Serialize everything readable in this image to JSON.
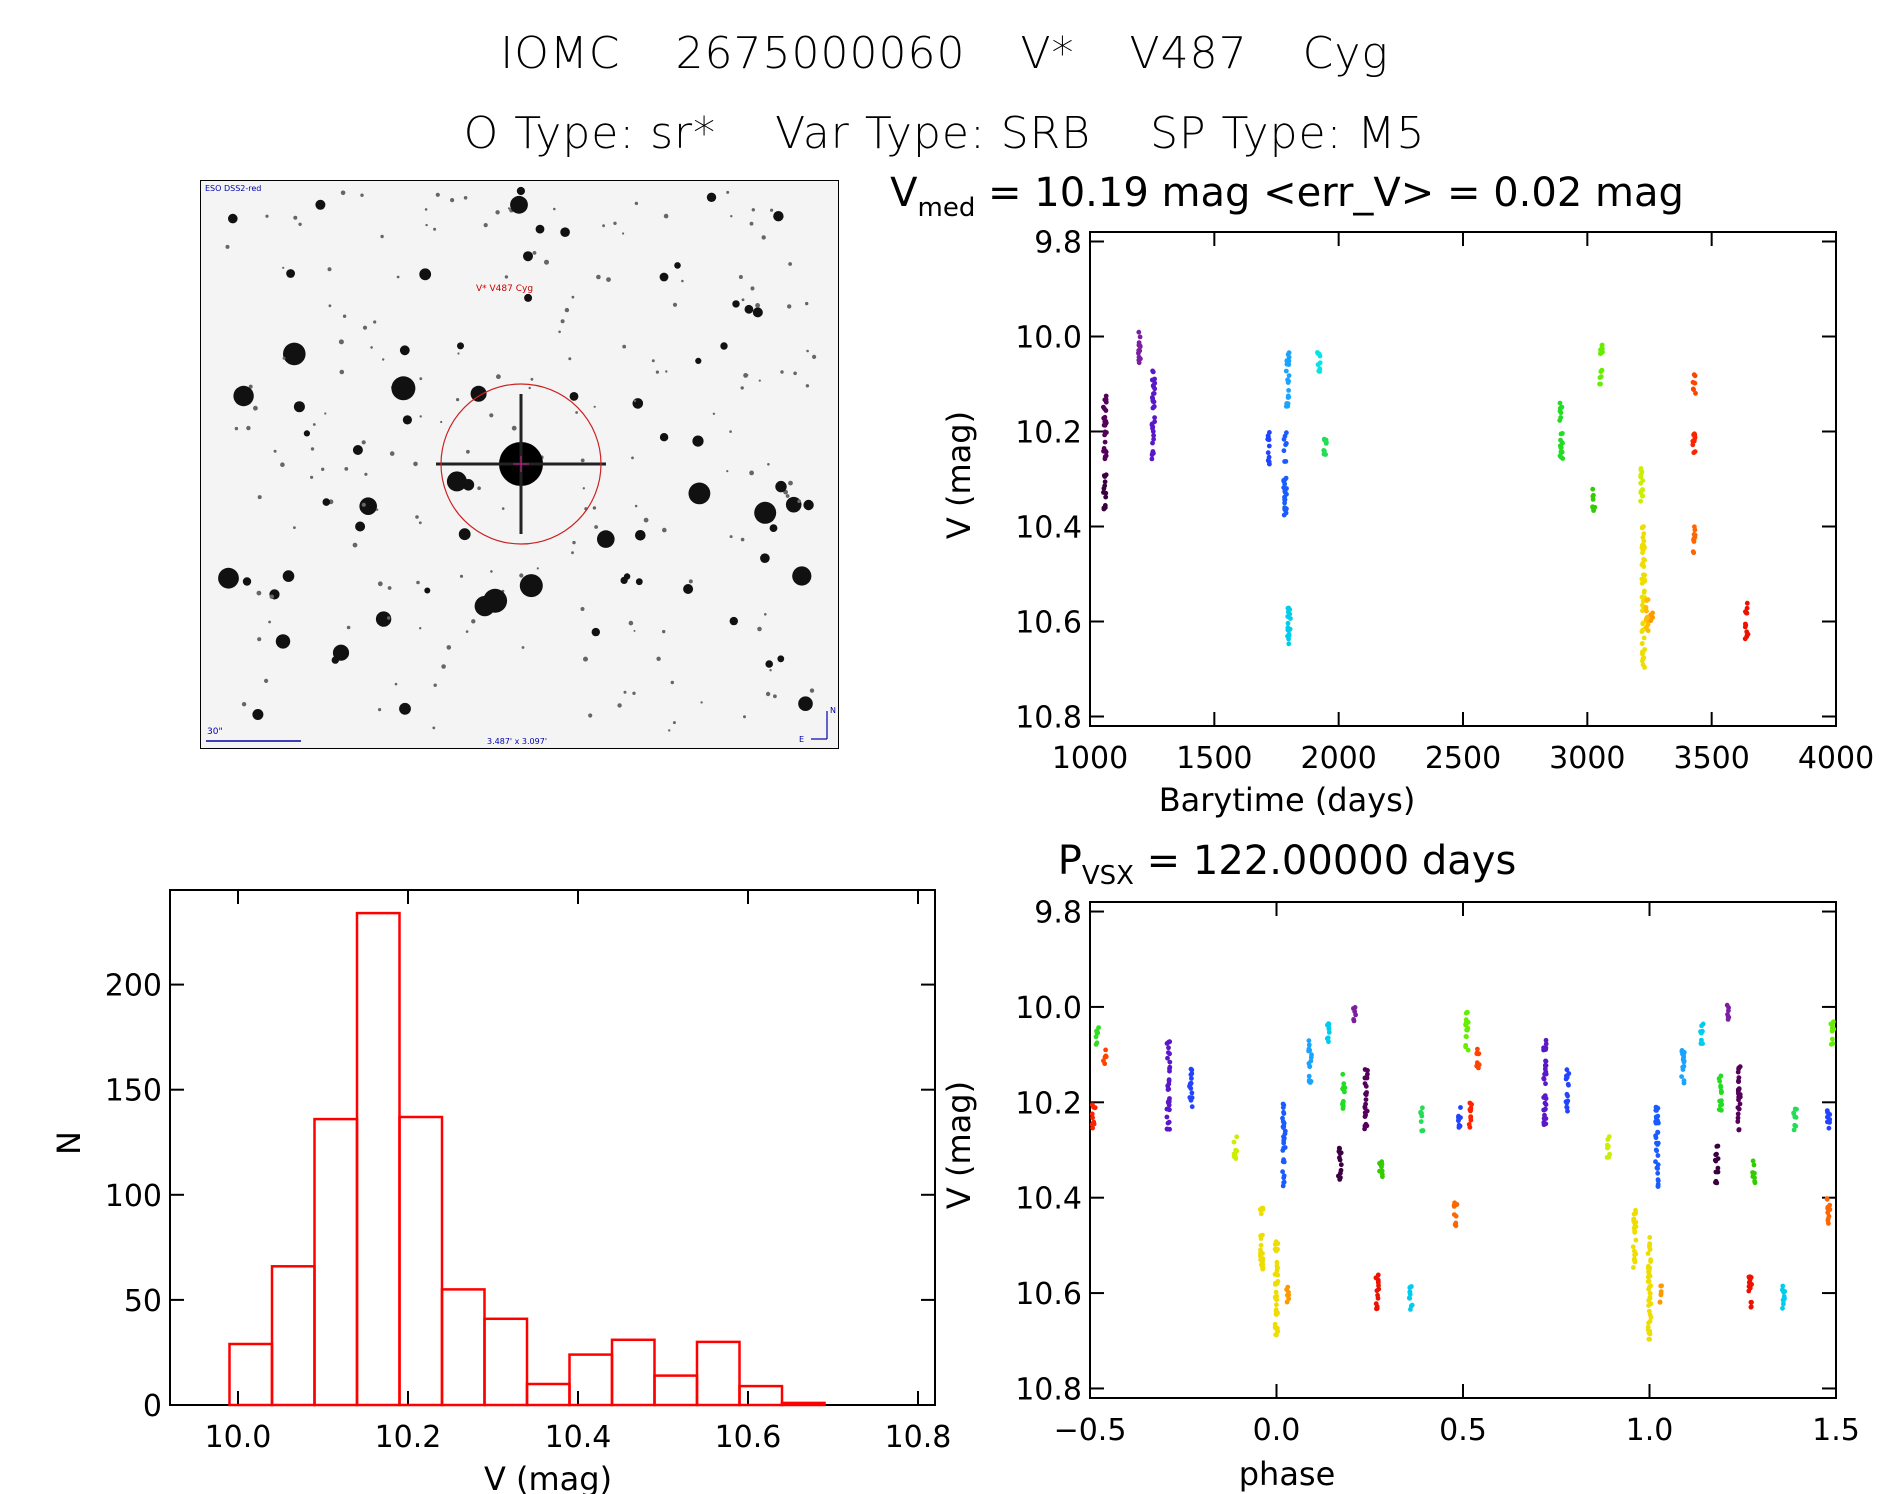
{
  "title": "IOMC 2675000060",
  "name": "V* V487 Cyg",
  "otype": "O Type: sr*",
  "vartype": "Var Type: SRB",
  "sptype": "SP Type: M5",
  "finder": {
    "header": "ESO DSS2-red",
    "target": "V* V487 Cyg",
    "scale": "30\"",
    "fov": "3.487' x 3.097'",
    "north": "N",
    "east": "E"
  },
  "colors": {
    "hist": "#ff0000",
    "axis": "#000000"
  },
  "chart_data": [
    {
      "type": "scatter",
      "title_main": "V",
      "title_sub": "med",
      "title_rest": " = 10.19 mag <err_V> = 0.02 mag",
      "xlabel": "Barytime (days)",
      "ylabel": "V (mag)",
      "xlim": [
        1000,
        4000
      ],
      "ylim": [
        10.82,
        9.78
      ],
      "xticks": [
        "1000",
        "1500",
        "2000",
        "2500",
        "3000",
        "3500",
        "4000"
      ],
      "yticks": [
        "9.8",
        "10.0",
        "10.2",
        "10.4",
        "10.6",
        "10.8"
      ],
      "clusters": [
        {
          "x": 1060,
          "ymin": 10.12,
          "ymax": 10.26,
          "color": "#55005a"
        },
        {
          "x": 1060,
          "ymin": 10.29,
          "ymax": 10.37,
          "color": "#3a0040"
        },
        {
          "x": 1200,
          "ymin": 9.99,
          "ymax": 10.06,
          "color": "#7b1fa2"
        },
        {
          "x": 1255,
          "ymin": 10.07,
          "ymax": 10.26,
          "color": "#5a18c8"
        },
        {
          "x": 1720,
          "ymin": 10.2,
          "ymax": 10.27,
          "color": "#2244ff"
        },
        {
          "x": 1785,
          "ymin": 10.2,
          "ymax": 10.38,
          "color": "#1a5cff"
        },
        {
          "x": 1795,
          "ymin": 10.03,
          "ymax": 10.15,
          "color": "#1aa3ff"
        },
        {
          "x": 1800,
          "ymin": 10.55,
          "ymax": 10.65,
          "color": "#00ccee"
        },
        {
          "x": 1920,
          "ymin": 10.03,
          "ymax": 10.08,
          "color": "#00e5e5"
        },
        {
          "x": 1945,
          "ymin": 10.21,
          "ymax": 10.26,
          "color": "#22dd55"
        },
        {
          "x": 2895,
          "ymin": 10.14,
          "ymax": 10.26,
          "color": "#22dd22"
        },
        {
          "x": 3025,
          "ymin": 10.32,
          "ymax": 10.37,
          "color": "#33cc00"
        },
        {
          "x": 3055,
          "ymin": 10.01,
          "ymax": 10.1,
          "color": "#66ee00"
        },
        {
          "x": 3220,
          "ymin": 10.27,
          "ymax": 10.36,
          "color": "#ccee00"
        },
        {
          "x": 3225,
          "ymin": 10.4,
          "ymax": 10.7,
          "color": "#eedd00"
        },
        {
          "x": 3240,
          "ymin": 10.55,
          "ymax": 10.62,
          "color": "#ffbb00"
        },
        {
          "x": 3260,
          "ymin": 10.58,
          "ymax": 10.6,
          "color": "#ff9900"
        },
        {
          "x": 3430,
          "ymin": 10.08,
          "ymax": 10.12,
          "color": "#ff4400"
        },
        {
          "x": 3430,
          "ymin": 10.2,
          "ymax": 10.26,
          "color": "#ff2200"
        },
        {
          "x": 3430,
          "ymin": 10.4,
          "ymax": 10.46,
          "color": "#ff6600"
        },
        {
          "x": 3640,
          "ymin": 10.56,
          "ymax": 10.64,
          "color": "#ee1100"
        }
      ]
    },
    {
      "type": "bar",
      "xlabel": "V (mag)",
      "ylabel": "N",
      "xlim": [
        9.92,
        10.82
      ],
      "ylim": [
        0,
        245
      ],
      "xticks": [
        "10.0",
        "10.2",
        "10.4",
        "10.6",
        "10.8"
      ],
      "yticks": [
        "0",
        "50",
        "100",
        "150",
        "200"
      ],
      "bin_width": 0.05,
      "bins": [
        9.99,
        10.04,
        10.09,
        10.14,
        10.19,
        10.24,
        10.29,
        10.34,
        10.39,
        10.44,
        10.49,
        10.54,
        10.59,
        10.64,
        10.69
      ],
      "values": [
        29,
        66,
        136,
        234,
        137,
        55,
        41,
        10,
        24,
        31,
        14,
        30,
        9,
        1,
        0
      ]
    },
    {
      "type": "scatter",
      "title_main": "P",
      "title_sub": "VSX",
      "title_rest": " = 122.00000 days",
      "xlabel": "phase",
      "ylabel": "V (mag)",
      "xlim": [
        -0.5,
        1.5
      ],
      "ylim": [
        10.82,
        9.78
      ],
      "xticks": [
        "−0.5",
        "0.0",
        "0.5",
        "1.0",
        "1.5"
      ],
      "yticks": [
        "9.8",
        "10.0",
        "10.2",
        "10.4",
        "10.6",
        "10.8"
      ],
      "clusters": [
        {
          "x": -0.49,
          "ymin": 10.2,
          "ymax": 10.26,
          "color": "#ff2200"
        },
        {
          "x": -0.48,
          "ymin": 10.03,
          "ymax": 10.08,
          "color": "#33dd22"
        },
        {
          "x": -0.46,
          "ymin": 10.08,
          "ymax": 10.12,
          "color": "#ff4400"
        },
        {
          "x": -0.29,
          "ymin": 10.07,
          "ymax": 10.26,
          "color": "#5a18c8"
        },
        {
          "x": -0.23,
          "ymin": 10.13,
          "ymax": 10.22,
          "color": "#2244ff"
        },
        {
          "x": -0.11,
          "ymin": 10.27,
          "ymax": 10.32,
          "color": "#ccee00"
        },
        {
          "x": -0.04,
          "ymin": 10.42,
          "ymax": 10.55,
          "color": "#eedd00"
        },
        {
          "x": 0.0,
          "ymin": 10.48,
          "ymax": 10.7,
          "color": "#eedd00"
        },
        {
          "x": 0.03,
          "ymin": 10.58,
          "ymax": 10.62,
          "color": "#ff9900"
        },
        {
          "x": 0.02,
          "ymin": 10.2,
          "ymax": 10.38,
          "color": "#1a5cff"
        },
        {
          "x": 0.09,
          "ymin": 10.07,
          "ymax": 10.16,
          "color": "#1aa3ff"
        },
        {
          "x": 0.14,
          "ymin": 10.03,
          "ymax": 10.08,
          "color": "#00ccee"
        },
        {
          "x": 0.17,
          "ymin": 10.29,
          "ymax": 10.37,
          "color": "#3a0040"
        },
        {
          "x": 0.18,
          "ymin": 10.14,
          "ymax": 10.22,
          "color": "#22dd22"
        },
        {
          "x": 0.21,
          "ymin": 9.99,
          "ymax": 10.03,
          "color": "#7b1fa2"
        },
        {
          "x": 0.24,
          "ymin": 10.12,
          "ymax": 10.26,
          "color": "#55005a"
        },
        {
          "x": 0.28,
          "ymin": 10.32,
          "ymax": 10.37,
          "color": "#33cc00"
        },
        {
          "x": 0.27,
          "ymin": 10.56,
          "ymax": 10.64,
          "color": "#ee1100"
        },
        {
          "x": 0.36,
          "ymin": 10.58,
          "ymax": 10.64,
          "color": "#00ccee"
        },
        {
          "x": 0.39,
          "ymin": 10.21,
          "ymax": 10.26,
          "color": "#22dd55"
        },
        {
          "x": 0.48,
          "ymin": 10.4,
          "ymax": 10.46,
          "color": "#ff6600"
        },
        {
          "x": 0.49,
          "ymin": 10.21,
          "ymax": 10.26,
          "color": "#2244ff"
        },
        {
          "x": 0.51,
          "ymin": 10.01,
          "ymax": 10.1,
          "color": "#66ee00"
        },
        {
          "x": 0.52,
          "ymin": 10.2,
          "ymax": 10.26,
          "color": "#ff2200"
        },
        {
          "x": 0.54,
          "ymin": 10.08,
          "ymax": 10.13,
          "color": "#ff4400"
        },
        {
          "x": 0.72,
          "ymin": 10.07,
          "ymax": 10.26,
          "color": "#5a18c8"
        },
        {
          "x": 0.78,
          "ymin": 10.13,
          "ymax": 10.22,
          "color": "#2244ff"
        },
        {
          "x": 0.89,
          "ymin": 10.27,
          "ymax": 10.32,
          "color": "#ccee00"
        },
        {
          "x": 0.96,
          "ymin": 10.42,
          "ymax": 10.55,
          "color": "#eedd00"
        },
        {
          "x": 1.0,
          "ymin": 10.48,
          "ymax": 10.7,
          "color": "#eedd00"
        },
        {
          "x": 1.03,
          "ymin": 10.58,
          "ymax": 10.62,
          "color": "#ff9900"
        },
        {
          "x": 1.02,
          "ymin": 10.2,
          "ymax": 10.38,
          "color": "#1a5cff"
        },
        {
          "x": 1.09,
          "ymin": 10.07,
          "ymax": 10.16,
          "color": "#1aa3ff"
        },
        {
          "x": 1.14,
          "ymin": 10.03,
          "ymax": 10.08,
          "color": "#00ccee"
        },
        {
          "x": 1.18,
          "ymin": 10.29,
          "ymax": 10.37,
          "color": "#3a0040"
        },
        {
          "x": 1.19,
          "ymin": 10.14,
          "ymax": 10.22,
          "color": "#22dd22"
        },
        {
          "x": 1.21,
          "ymin": 9.99,
          "ymax": 10.03,
          "color": "#7b1fa2"
        },
        {
          "x": 1.24,
          "ymin": 10.12,
          "ymax": 10.26,
          "color": "#55005a"
        },
        {
          "x": 1.28,
          "ymin": 10.32,
          "ymax": 10.37,
          "color": "#33cc00"
        },
        {
          "x": 1.27,
          "ymin": 10.56,
          "ymax": 10.64,
          "color": "#ee1100"
        },
        {
          "x": 1.36,
          "ymin": 10.58,
          "ymax": 10.64,
          "color": "#00ccee"
        },
        {
          "x": 1.39,
          "ymin": 10.21,
          "ymax": 10.26,
          "color": "#22dd55"
        },
        {
          "x": 1.48,
          "ymin": 10.4,
          "ymax": 10.46,
          "color": "#ff6600"
        },
        {
          "x": 1.48,
          "ymin": 10.21,
          "ymax": 10.26,
          "color": "#2244ff"
        },
        {
          "x": 1.49,
          "ymin": 10.03,
          "ymax": 10.08,
          "color": "#66ee00"
        }
      ]
    }
  ]
}
